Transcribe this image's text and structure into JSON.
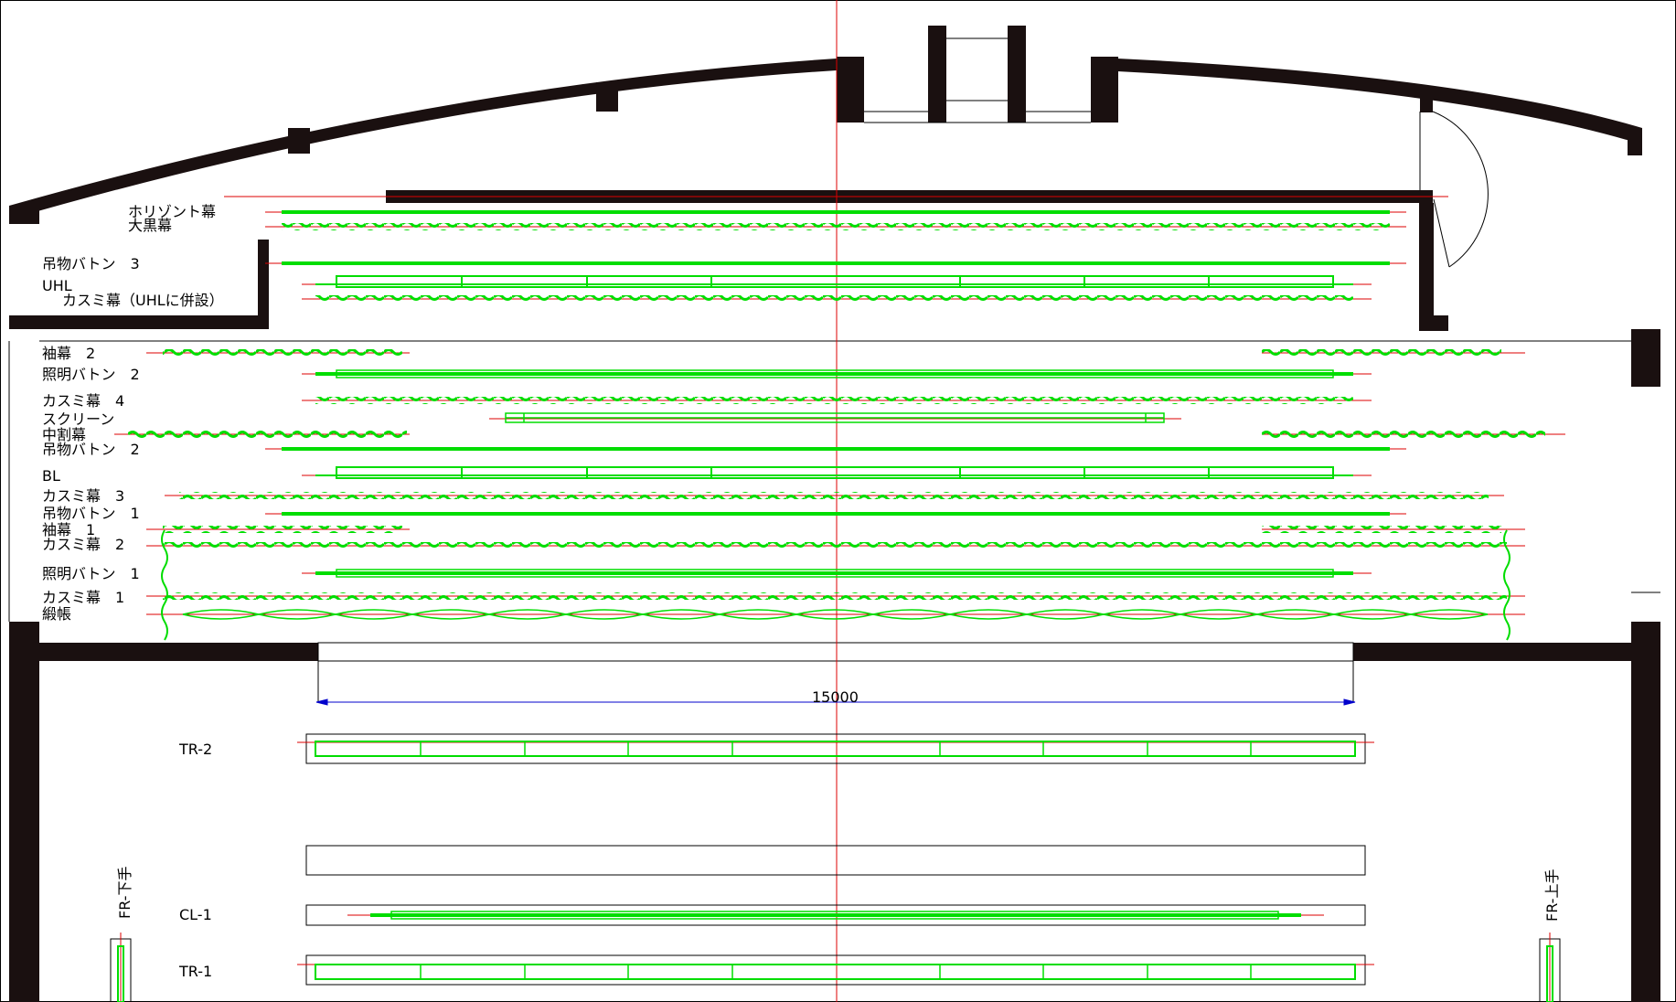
{
  "colors": {
    "wall": "#1a1010",
    "equipment": "#00dd00",
    "centerline": "#dd0000",
    "dimension": "#0000cc",
    "outline": "#000000"
  },
  "stage_labels": [
    {
      "id": "horizont",
      "text": "ホリゾント幕"
    },
    {
      "id": "ookuro",
      "text": "大黒幕"
    },
    {
      "id": "tsuri3",
      "text": "吊物バトン　3"
    },
    {
      "id": "uhl",
      "text": "UHL"
    },
    {
      "id": "kasumi_uhl",
      "text": "カスミ幕（UHLに併設）"
    },
    {
      "id": "sode2",
      "text": "袖幕　2"
    },
    {
      "id": "shomei2",
      "text": "照明バトン　2"
    },
    {
      "id": "kasumi4",
      "text": "カスミ幕　4"
    },
    {
      "id": "screen",
      "text": "スクリーン"
    },
    {
      "id": "nakawari",
      "text": "中割幕"
    },
    {
      "id": "tsuri2",
      "text": "吊物バトン　2"
    },
    {
      "id": "bl",
      "text": "BL"
    },
    {
      "id": "kasumi3",
      "text": "カスミ幕　3"
    },
    {
      "id": "tsuri1",
      "text": "吊物バトン　1"
    },
    {
      "id": "sode1",
      "text": "袖幕　1"
    },
    {
      "id": "kasumi2",
      "text": "カスミ幕　2"
    },
    {
      "id": "shomei1",
      "text": "照明バトン　1"
    },
    {
      "id": "kasumi1",
      "text": "カスミ幕　1"
    },
    {
      "id": "doncho",
      "text": "緞帳"
    }
  ],
  "dimension": {
    "value": "15000"
  },
  "house_labels": {
    "tr2": "TR-2",
    "cl1": "CL-1",
    "tr1": "TR-1",
    "fr_left": "FR-下手",
    "fr_right": "FR-上手"
  }
}
